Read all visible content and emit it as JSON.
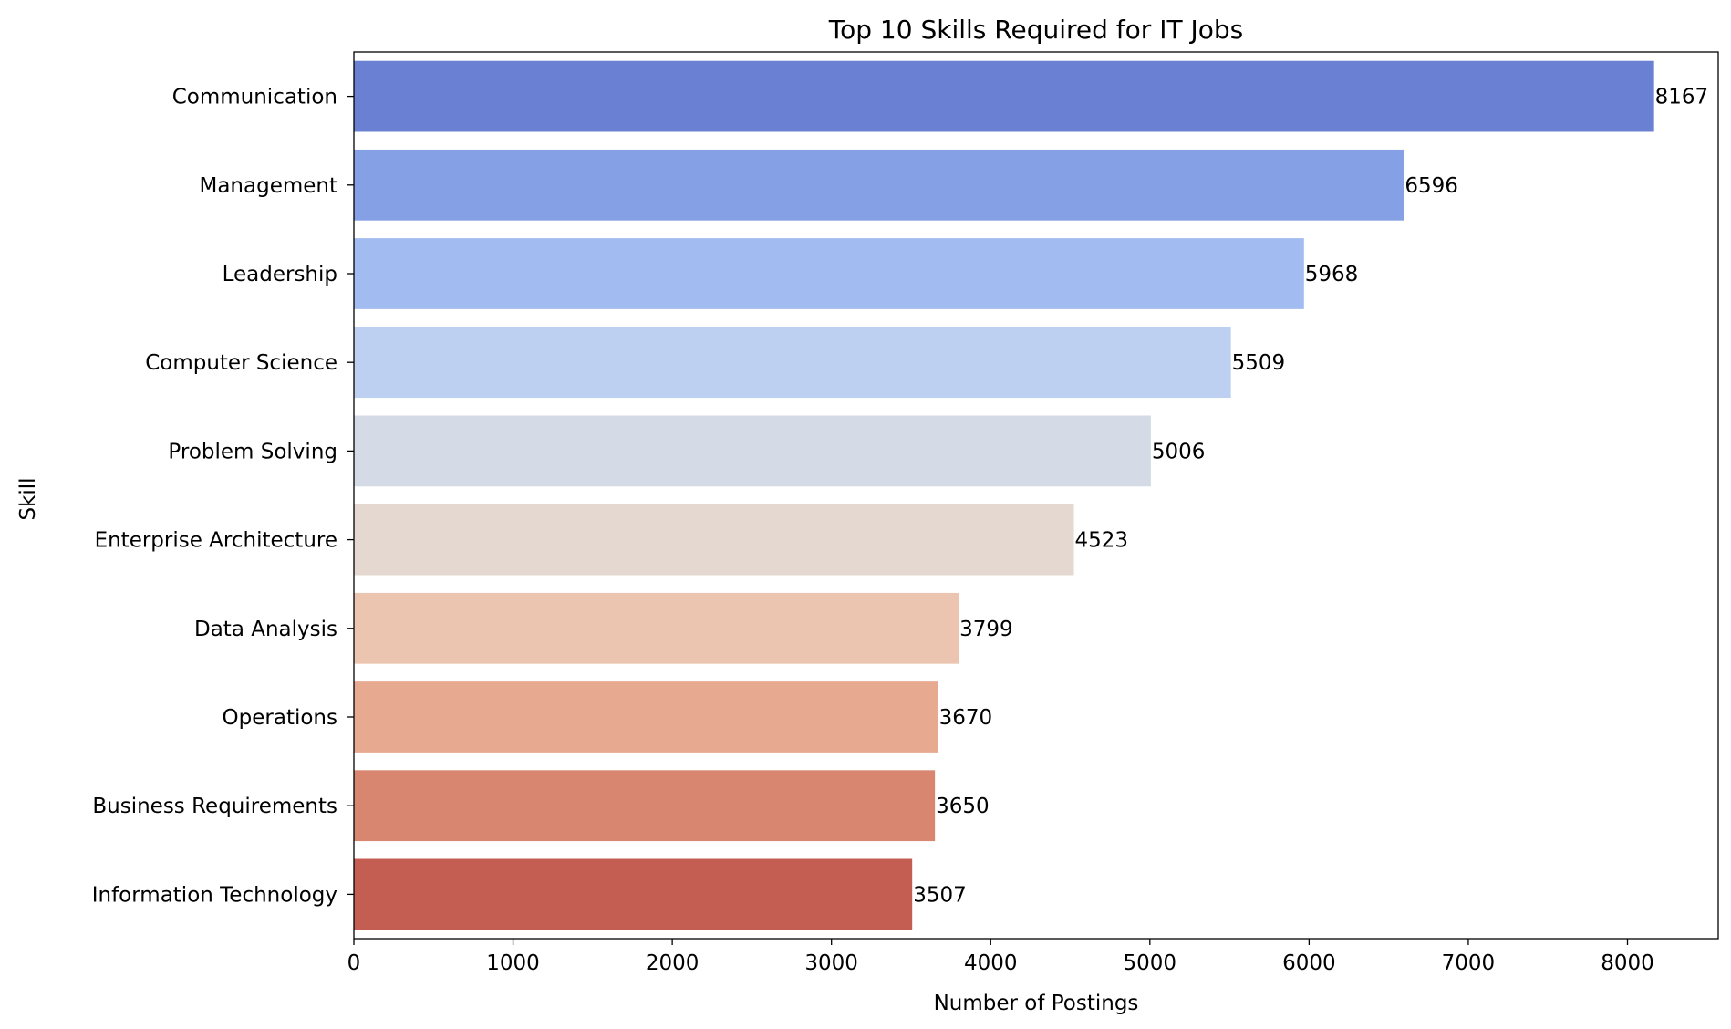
{
  "chart_data": {
    "type": "bar",
    "orientation": "horizontal",
    "title": "Top 10 Skills Required for IT Jobs",
    "xlabel": "Number of Postings",
    "ylabel": "Skill",
    "xlim": [
      0,
      8570
    ],
    "xticks": [
      0,
      1000,
      2000,
      3000,
      4000,
      5000,
      6000,
      7000,
      8000
    ],
    "grid": false,
    "legend": "none",
    "categories": [
      "Communication",
      "Management",
      "Leadership",
      "Computer Science",
      "Problem Solving",
      "Enterprise Architecture",
      "Data Analysis",
      "Operations",
      "Business Requirements",
      "Information Technology"
    ],
    "values": [
      8167,
      6596,
      5968,
      5509,
      5006,
      4523,
      3799,
      3670,
      3650,
      3507
    ],
    "colors": [
      "#6a80d2",
      "#86a0e5",
      "#a2bbf1",
      "#bdd0f1",
      "#d5dbe6",
      "#e5d8d1",
      "#ecc5b1",
      "#e7a990",
      "#d98671",
      "#c45e53"
    ]
  }
}
